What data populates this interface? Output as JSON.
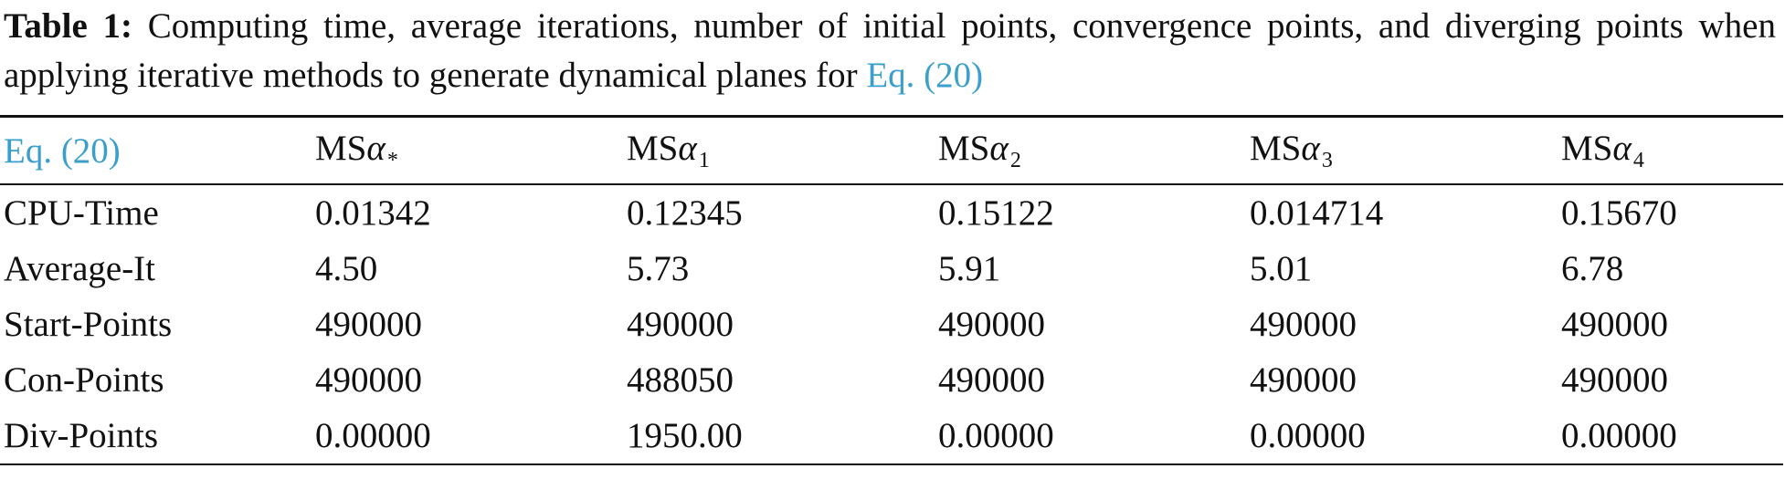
{
  "caption": {
    "label": "Table 1:",
    "text": " Computing time, average iterations, number of initial points, convergence points, and diverging points when applying iterative methods to generate dynamical planes for ",
    "link": "Eq. (20)"
  },
  "table": {
    "corner_header": "Eq. (20)",
    "columns": [
      {
        "prefix": "MS",
        "symbol": "α",
        "subscript": "*"
      },
      {
        "prefix": "MS",
        "symbol": "α",
        "subscript": "1"
      },
      {
        "prefix": "MS",
        "symbol": "α",
        "subscript": "2"
      },
      {
        "prefix": "MS",
        "symbol": "α",
        "subscript": "3"
      },
      {
        "prefix": "MS",
        "symbol": "α",
        "subscript": "4"
      }
    ],
    "rows": [
      {
        "label": "CPU-Time",
        "values": [
          "0.01342",
          "0.12345",
          "0.15122",
          "0.014714",
          "0.15670"
        ]
      },
      {
        "label": "Average-It",
        "values": [
          "4.50",
          "5.73",
          "5.91",
          "5.01",
          "6.78"
        ]
      },
      {
        "label": "Start-Points",
        "values": [
          "490000",
          "490000",
          "490000",
          "490000",
          "490000"
        ]
      },
      {
        "label": "Con-Points",
        "values": [
          "490000",
          "488050",
          "490000",
          "490000",
          "490000"
        ]
      },
      {
        "label": "Div-Points",
        "values": [
          "0.00000",
          "1950.00",
          "0.00000",
          "0.00000",
          "0.00000"
        ]
      }
    ]
  },
  "colors": {
    "link": "#3a9fcc",
    "text": "#111111",
    "rule": "#111111"
  }
}
